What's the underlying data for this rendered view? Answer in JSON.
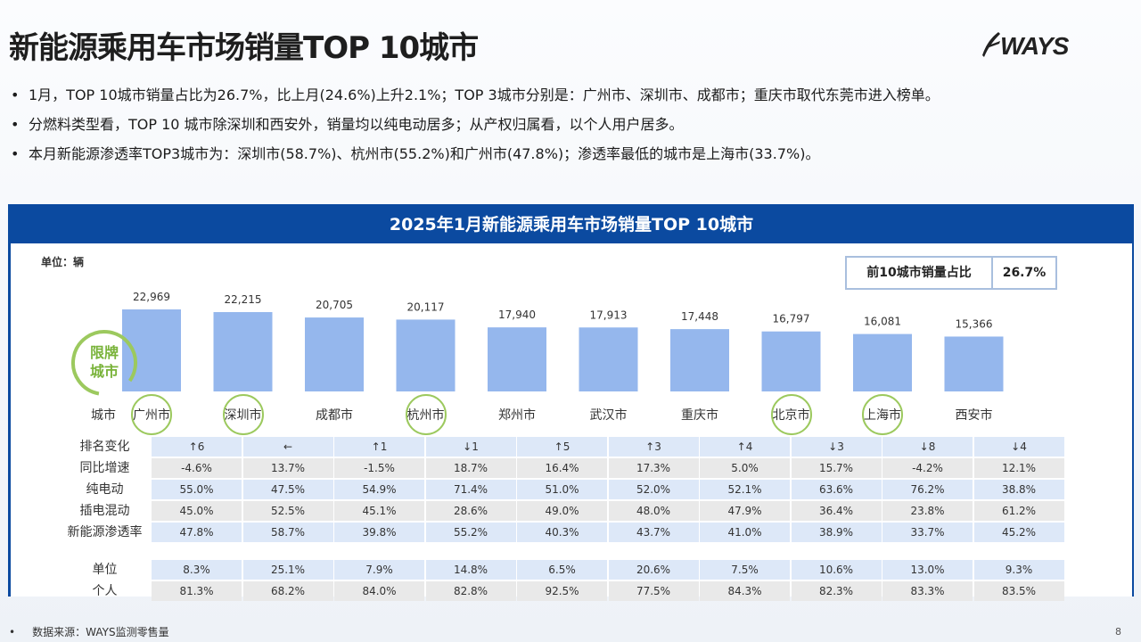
{
  "title": "新能源乘用车市场销量TOP 10城市",
  "logo": {
    "text": "WAYS",
    "icon": "ways-swoosh-icon"
  },
  "bullets": [
    "1月，TOP 10城市销量占比为26.7%，比上月(24.6%)上升2.1%；TOP 3城市分别是：广州市、深圳市、成都市；重庆市取代东莞市进入榜单。",
    "分燃料类型看，TOP 10 城市除深圳和西安外，销量均以纯电动居多；从产权归属看，以个人用户居多。",
    "本月新能源渗透率TOP3城市为：深圳市(58.7%)、杭州市(55.2%)和广州市(47.8%)；渗透率最低的城市是上海市(33.7%)。"
  ],
  "panel": {
    "header": "2025年1月新能源乘用车市场销量TOP  10城市",
    "unit": "单位：辆",
    "share_label": "前10城市销量占比",
    "share_value": "26.7%",
    "badge": [
      "限牌",
      "城市"
    ],
    "city_row_label": "城市"
  },
  "chart_data": {
    "type": "bar",
    "categories": [
      "广州市",
      "深圳市",
      "成都市",
      "杭州市",
      "郑州市",
      "武汉市",
      "重庆市",
      "北京市",
      "上海市",
      "西安市"
    ],
    "values": [
      22969,
      22215,
      20705,
      20117,
      17940,
      17913,
      17448,
      16797,
      16081,
      15366
    ],
    "value_labels": [
      "22,969",
      "22,215",
      "20,705",
      "20,117",
      "17,940",
      "17,913",
      "17,448",
      "16,797",
      "16,081",
      "15,366"
    ],
    "restricted_cities": [
      "广州市",
      "深圳市",
      "杭州市",
      "北京市",
      "上海市"
    ],
    "bar_color": "#95b7ed",
    "ylim": [
      0,
      26000
    ]
  },
  "table": {
    "rows": [
      {
        "label": "排名变化",
        "style": "blue",
        "values": [
          "↑6",
          "←",
          "↑1",
          "↓1",
          "↑5",
          "↑3",
          "↑4",
          "↓3",
          "↓8",
          "↓4"
        ]
      },
      {
        "label": "同比增速",
        "style": "grey",
        "values": [
          "-4.6%",
          "13.7%",
          "-1.5%",
          "18.7%",
          "16.4%",
          "17.3%",
          "5.0%",
          "15.7%",
          "-4.2%",
          "12.1%"
        ]
      },
      {
        "label": "纯电动",
        "style": "blue",
        "values": [
          "55.0%",
          "47.5%",
          "54.9%",
          "71.4%",
          "51.0%",
          "52.0%",
          "52.1%",
          "63.6%",
          "76.2%",
          "38.8%"
        ]
      },
      {
        "label": "插电混动",
        "style": "grey",
        "values": [
          "45.0%",
          "52.5%",
          "45.1%",
          "28.6%",
          "49.0%",
          "48.0%",
          "47.9%",
          "36.4%",
          "23.8%",
          "61.2%"
        ]
      },
      {
        "label": "新能源渗透率",
        "style": "blue",
        "values": [
          "47.8%",
          "58.7%",
          "39.8%",
          "55.2%",
          "40.3%",
          "43.7%",
          "41.0%",
          "38.9%",
          "33.7%",
          "45.2%"
        ]
      },
      {
        "label": "单位",
        "style": "blue",
        "values": [
          "8.3%",
          "25.1%",
          "7.9%",
          "14.8%",
          "6.5%",
          "20.6%",
          "7.5%",
          "10.6%",
          "13.0%",
          "9.3%"
        ]
      },
      {
        "label": "个人",
        "style": "grey",
        "values": [
          "81.3%",
          "68.2%",
          "84.0%",
          "82.8%",
          "92.5%",
          "77.5%",
          "84.3%",
          "82.3%",
          "83.3%",
          "83.5%"
        ]
      }
    ]
  },
  "footer": "数据来源：WAYS监测零售量",
  "page_number": "8",
  "colors": {
    "header_blue": "#0b4aa0",
    "ring_green": "#9cc95e",
    "badge_green": "#79b33a",
    "row_blue": "#dde8f8",
    "row_grey": "#e9e9e9"
  }
}
